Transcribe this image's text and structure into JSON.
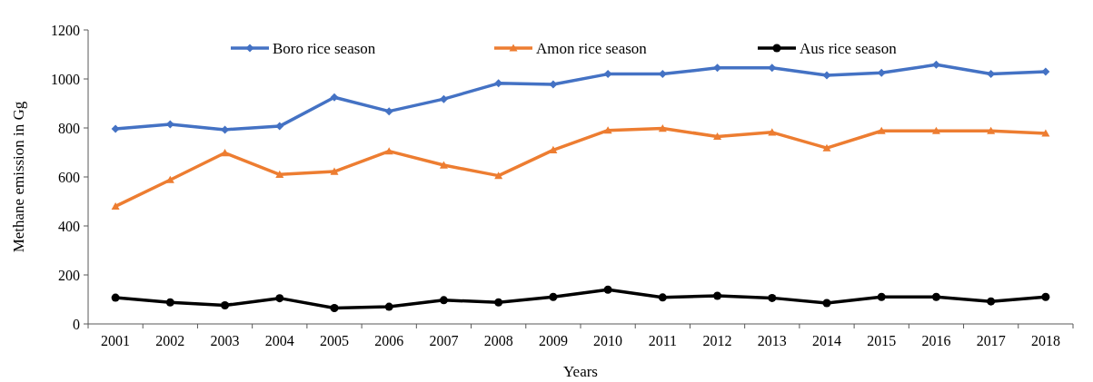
{
  "chart_data": {
    "type": "line",
    "xlabel": "Years",
    "ylabel": "Methane emission in Gg",
    "categories": [
      "2001",
      "2002",
      "2003",
      "2004",
      "2005",
      "2006",
      "2007",
      "2008",
      "2009",
      "2010",
      "2011",
      "2012",
      "2013",
      "2014",
      "2015",
      "2016",
      "2017",
      "2018"
    ],
    "series": [
      {
        "name": "Boro rice season",
        "color": "#4472c4",
        "marker": "diamond",
        "values": [
          796,
          815,
          793,
          807,
          925,
          868,
          918,
          982,
          978,
          1020,
          1020,
          1045,
          1045,
          1015,
          1025,
          1058,
          1020,
          1030
        ]
      },
      {
        "name": "Amon rice season",
        "color": "#ed7d31",
        "marker": "triangle",
        "values": [
          480,
          588,
          698,
          610,
          622,
          705,
          648,
          605,
          710,
          790,
          798,
          765,
          782,
          718,
          788,
          788,
          788,
          778
        ]
      },
      {
        "name": "Aus rice season",
        "color": "#000000",
        "marker": "circle",
        "values": [
          107,
          88,
          76,
          105,
          65,
          70,
          97,
          88,
          110,
          140,
          108,
          115,
          106,
          85,
          110,
          110,
          92,
          110
        ]
      }
    ],
    "ylim": [
      0,
      1200
    ],
    "yticks": [
      0,
      200,
      400,
      600,
      800,
      1000,
      1200
    ],
    "grid": false,
    "legend": "top"
  }
}
